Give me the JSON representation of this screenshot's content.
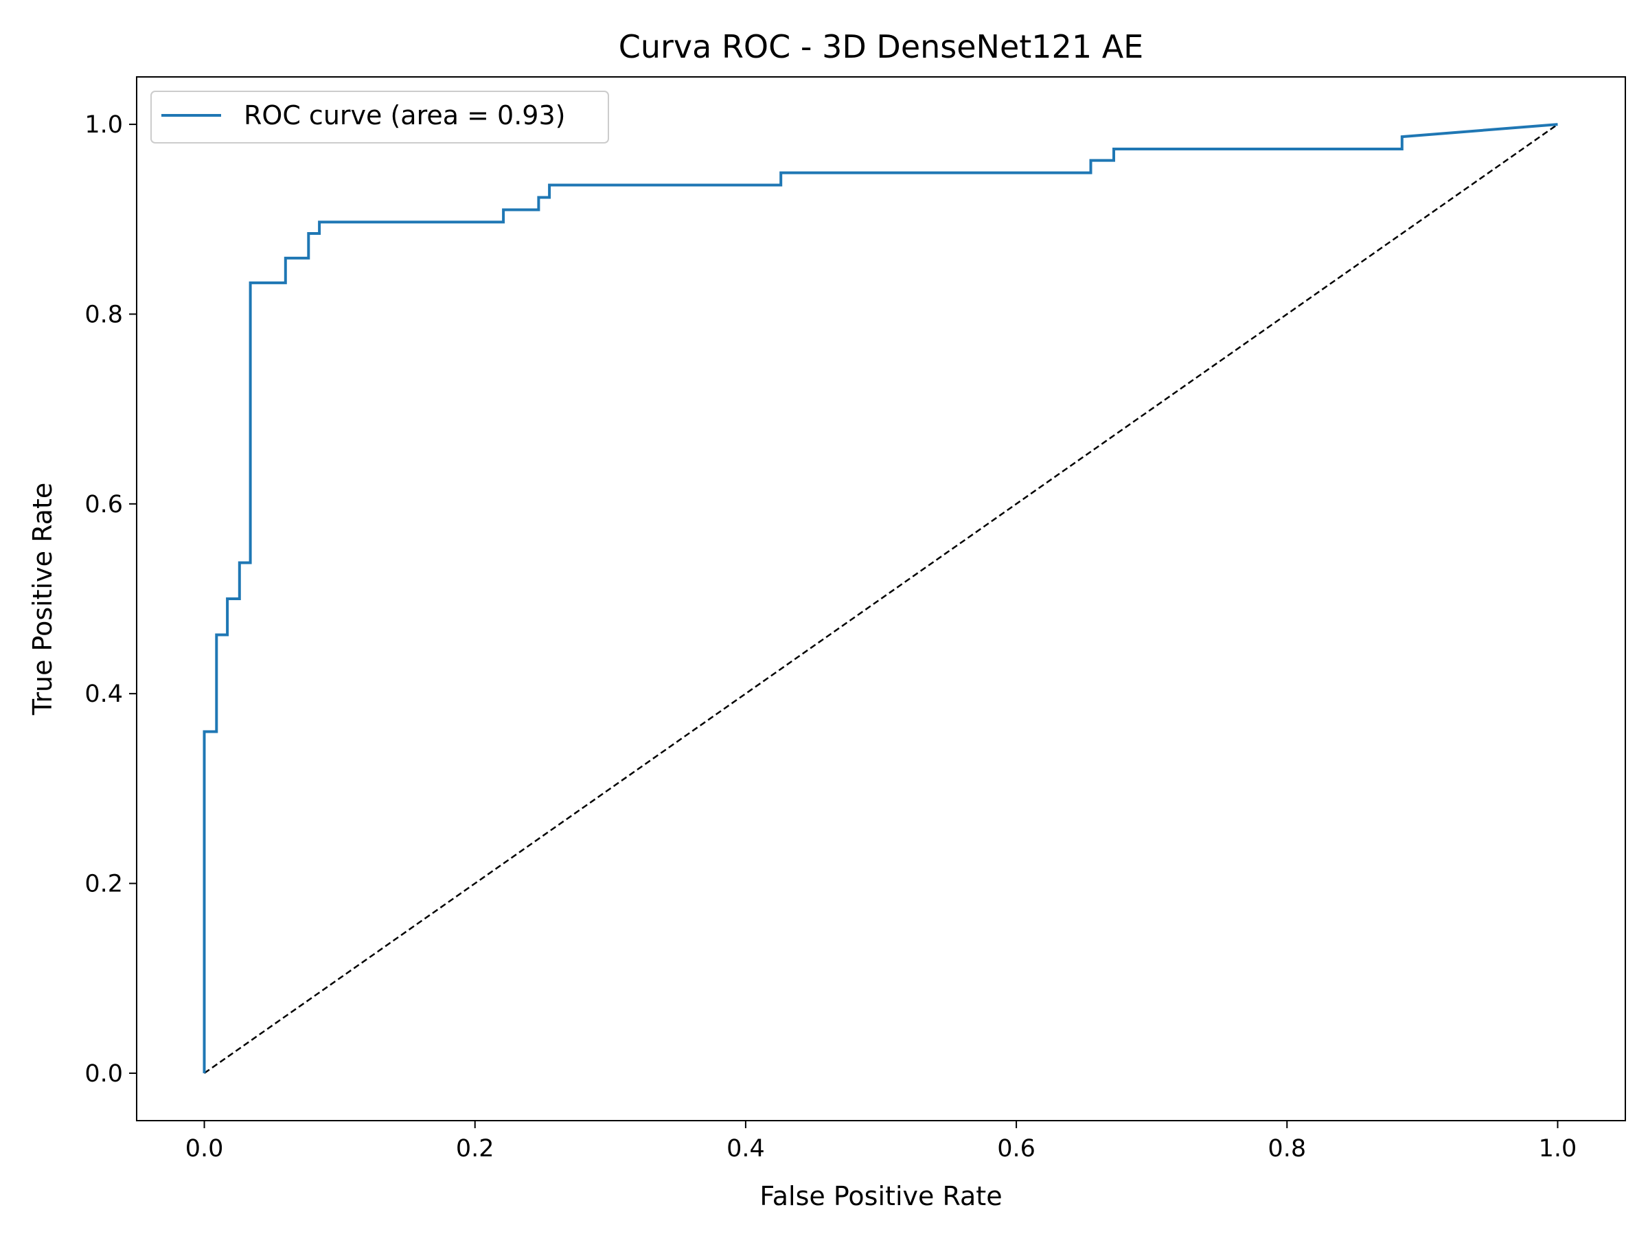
{
  "chart_data": {
    "type": "line",
    "title": "Curva ROC - 3D DenseNet121 AE",
    "xlabel": "False Positive Rate",
    "ylabel": "True Positive Rate",
    "xlim": [
      -0.05,
      1.05
    ],
    "ylim": [
      -0.05,
      1.05
    ],
    "x_ticks": [
      0.0,
      0.2,
      0.4,
      0.6,
      0.8,
      1.0
    ],
    "y_ticks": [
      0.0,
      0.2,
      0.4,
      0.6,
      0.8,
      1.0
    ],
    "x_tick_labels": [
      "0.0",
      "0.2",
      "0.4",
      "0.6",
      "0.8",
      "1.0"
    ],
    "y_tick_labels": [
      "0.0",
      "0.2",
      "0.4",
      "0.6",
      "0.8",
      "1.0"
    ],
    "grid": false,
    "legend_position": "top-left",
    "series": [
      {
        "name": "ROC curve (area = 0.93)",
        "color": "#1f77b4",
        "style": "solid",
        "x": [
          0.0,
          0.0,
          0.009,
          0.009,
          0.017,
          0.017,
          0.026,
          0.026,
          0.034,
          0.034,
          0.06,
          0.06,
          0.077,
          0.077,
          0.085,
          0.085,
          0.221,
          0.221,
          0.247,
          0.247,
          0.255,
          0.255,
          0.426,
          0.426,
          0.655,
          0.655,
          0.672,
          0.672,
          0.885,
          0.885,
          1.0
        ],
        "y": [
          0.0,
          0.36,
          0.36,
          0.462,
          0.462,
          0.5,
          0.5,
          0.538,
          0.538,
          0.833,
          0.833,
          0.859,
          0.859,
          0.885,
          0.885,
          0.897,
          0.897,
          0.91,
          0.91,
          0.923,
          0.923,
          0.936,
          0.936,
          0.949,
          0.949,
          0.962,
          0.962,
          0.974,
          0.974,
          0.987,
          1.0
        ]
      },
      {
        "color": "#000000",
        "style": "dashed",
        "x": [
          0.0,
          1.0
        ],
        "y": [
          0.0,
          1.0
        ]
      }
    ]
  }
}
